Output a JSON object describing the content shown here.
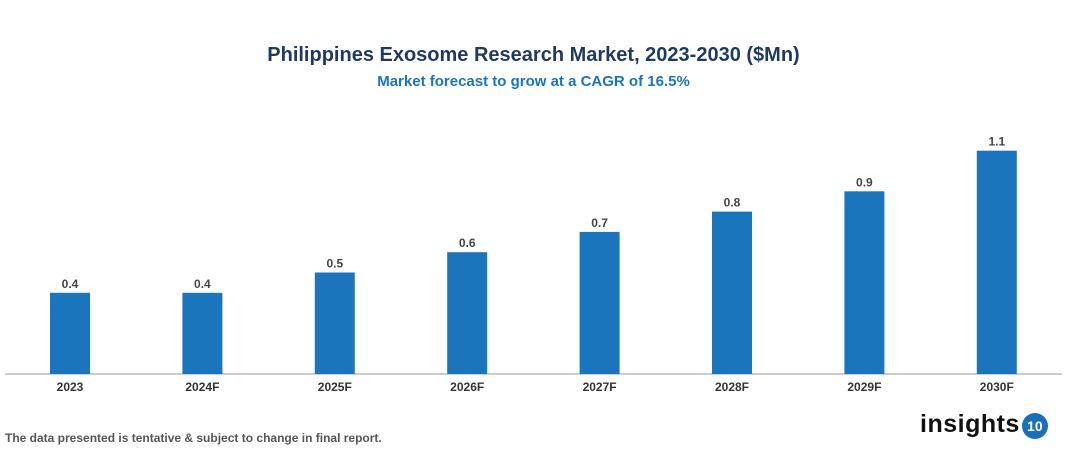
{
  "chart_data": {
    "type": "bar",
    "title": "Philippines Exosome Research Market, 2023-2030 ($Mn)",
    "subtitle": "Market forecast to grow at a CAGR of 16.5%",
    "categories": [
      "2023",
      "2024F",
      "2025F",
      "2026F",
      "2027F",
      "2028F",
      "2029F",
      "2030F"
    ],
    "values": [
      0.4,
      0.4,
      0.5,
      0.6,
      0.7,
      0.8,
      0.9,
      1.1
    ],
    "xlabel": "",
    "ylabel": "",
    "ylim": [
      0,
      1.2
    ],
    "grid": false,
    "bar_color": "#1a75bc"
  },
  "footer": {
    "note": "The data presented is tentative & subject to change in final report.",
    "logo_text": "insights",
    "logo_badge": "10"
  }
}
